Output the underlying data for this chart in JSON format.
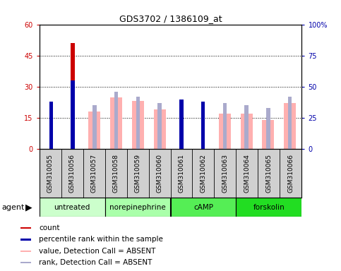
{
  "title": "GDS3702 / 1386109_at",
  "samples": [
    "GSM310055",
    "GSM310056",
    "GSM310057",
    "GSM310058",
    "GSM310059",
    "GSM310060",
    "GSM310061",
    "GSM310062",
    "GSM310063",
    "GSM310064",
    "GSM310065",
    "GSM310066"
  ],
  "red_bars": [
    20,
    51,
    0,
    0,
    0,
    0,
    19,
    21,
    0,
    0,
    0,
    0
  ],
  "pink_bars": [
    0,
    0,
    18,
    25,
    23,
    19,
    0,
    0,
    17,
    17,
    14,
    22
  ],
  "blue_dark_pct": [
    38,
    55,
    0,
    0,
    0,
    0,
    40,
    38,
    0,
    0,
    0,
    0
  ],
  "blue_light_pct": [
    0,
    0,
    35,
    46,
    42,
    37,
    0,
    0,
    37,
    35,
    33,
    42
  ],
  "ylim_left": [
    0,
    60
  ],
  "ylim_right": [
    0,
    100
  ],
  "yticks_left": [
    0,
    15,
    30,
    45,
    60
  ],
  "yticks_right": [
    0,
    25,
    50,
    75,
    100
  ],
  "ytick_labels_left": [
    "0",
    "15",
    "30",
    "45",
    "60"
  ],
  "ytick_labels_right": [
    "0",
    "25",
    "50",
    "75",
    "100%"
  ],
  "red_color": "#cc0000",
  "pink_color": "#ffb0b0",
  "blue_dark_color": "#0000aa",
  "blue_light_color": "#aaaacc",
  "group_data": [
    {
      "start": 0,
      "end": 3,
      "label": "untreated",
      "color": "#ccffcc"
    },
    {
      "start": 3,
      "end": 6,
      "label": "norepinephrine",
      "color": "#aaffaa"
    },
    {
      "start": 6,
      "end": 9,
      "label": "cAMP",
      "color": "#55ee55"
    },
    {
      "start": 9,
      "end": 12,
      "label": "forskolin",
      "color": "#22dd22"
    }
  ],
  "agent_label": "agent",
  "legend_items": [
    {
      "color": "#cc0000",
      "label": "count"
    },
    {
      "color": "#0000aa",
      "label": "percentile rank within the sample"
    },
    {
      "color": "#ffb0b0",
      "label": "value, Detection Call = ABSENT"
    },
    {
      "color": "#aaaacc",
      "label": "rank, Detection Call = ABSENT"
    }
  ]
}
